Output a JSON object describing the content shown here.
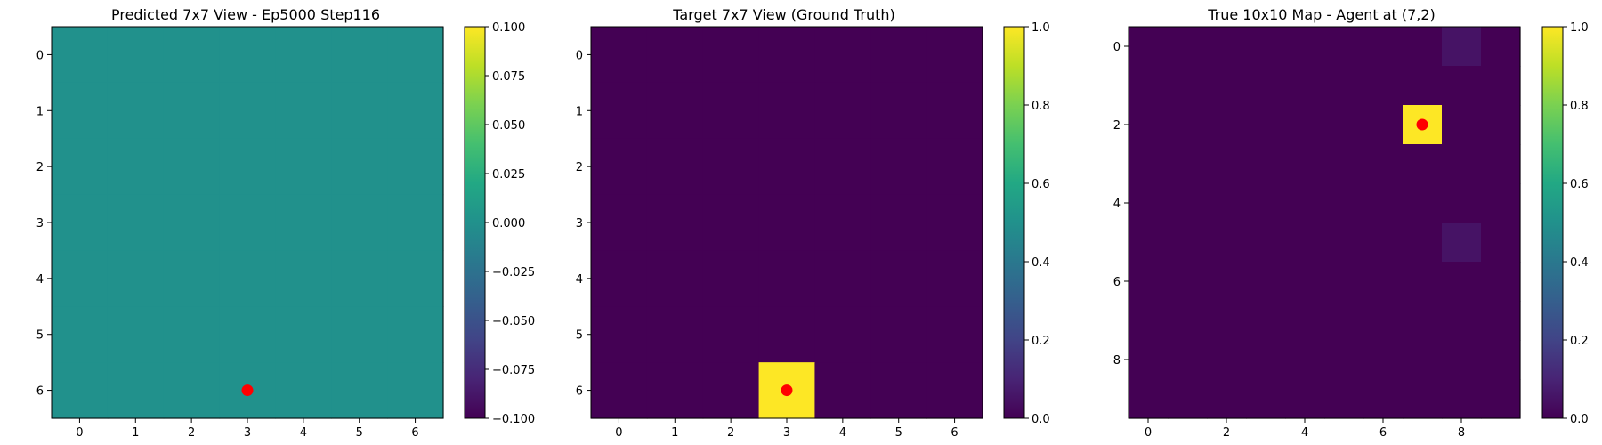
{
  "chart_data": [
    {
      "type": "heatmap",
      "title": "Predicted 7x7 View - Ep5000 Step116",
      "grid": false,
      "x_ticks": [
        "0",
        "1",
        "2",
        "3",
        "4",
        "5",
        "6"
      ],
      "y_ticks": [
        "0",
        "1",
        "2",
        "3",
        "4",
        "5",
        "6"
      ],
      "rows": 7,
      "cols": 7,
      "values": [
        [
          0,
          0,
          0,
          0,
          0,
          0,
          0
        ],
        [
          0,
          0,
          0,
          0,
          0,
          0,
          0
        ],
        [
          0,
          0,
          0,
          0,
          0,
          0,
          0
        ],
        [
          0,
          0,
          0,
          0,
          0,
          0,
          0
        ],
        [
          0,
          0,
          0,
          0,
          0,
          0,
          0
        ],
        [
          0,
          0,
          0,
          0,
          0,
          0,
          0
        ],
        [
          0,
          0,
          0,
          0,
          0,
          0,
          0
        ]
      ],
      "vmin": -0.1,
      "vmax": 0.1,
      "colormap": "viridis",
      "colorbar_ticks": [
        "0.100",
        "0.075",
        "0.050",
        "0.025",
        "0.000",
        "−0.025",
        "−0.050",
        "−0.075",
        "−0.100"
      ],
      "colorbar_tick_values": [
        0.1,
        0.075,
        0.05,
        0.025,
        0.0,
        -0.025,
        -0.05,
        -0.075,
        -0.1
      ],
      "marker": {
        "x": 3,
        "y": 6,
        "color": "#ff0000"
      }
    },
    {
      "type": "heatmap",
      "title": "Target 7x7 View (Ground Truth)",
      "grid": false,
      "x_ticks": [
        "0",
        "1",
        "2",
        "3",
        "4",
        "5",
        "6"
      ],
      "y_ticks": [
        "0",
        "1",
        "2",
        "3",
        "4",
        "5",
        "6"
      ],
      "rows": 7,
      "cols": 7,
      "values": [
        [
          0,
          0,
          0,
          0,
          0,
          0,
          0
        ],
        [
          0,
          0,
          0,
          0,
          0,
          0,
          0
        ],
        [
          0,
          0,
          0,
          0,
          0,
          0,
          0
        ],
        [
          0,
          0,
          0,
          0,
          0,
          0,
          0
        ],
        [
          0,
          0,
          0,
          0,
          0,
          0,
          0
        ],
        [
          0,
          0,
          0,
          0,
          0,
          0,
          0
        ],
        [
          0,
          0,
          0,
          1,
          0,
          0,
          0
        ]
      ],
      "vmin": 0,
      "vmax": 1,
      "colormap": "viridis",
      "colorbar_ticks": [
        "1.0",
        "0.8",
        "0.6",
        "0.4",
        "0.2",
        "0.0"
      ],
      "colorbar_tick_values": [
        1.0,
        0.8,
        0.6,
        0.4,
        0.2,
        0.0
      ],
      "marker": {
        "x": 3,
        "y": 6,
        "color": "#ff0000"
      }
    },
    {
      "type": "heatmap",
      "title": "True 10x10 Map - Agent at (7,2)",
      "grid": false,
      "x_ticks": [
        "0",
        "2",
        "4",
        "6",
        "8"
      ],
      "y_ticks": [
        "0",
        "2",
        "4",
        "6",
        "8"
      ],
      "rows": 10,
      "cols": 10,
      "values": [
        [
          0,
          0,
          0,
          0,
          0,
          0,
          0,
          0,
          0.05,
          0
        ],
        [
          0,
          0,
          0,
          0,
          0,
          0,
          0,
          0,
          0,
          0
        ],
        [
          0,
          0,
          0,
          0,
          0,
          0,
          0,
          1,
          0,
          0
        ],
        [
          0,
          0,
          0,
          0,
          0,
          0,
          0,
          0,
          0,
          0
        ],
        [
          0,
          0,
          0,
          0,
          0,
          0,
          0,
          0,
          0,
          0
        ],
        [
          0,
          0,
          0,
          0,
          0,
          0,
          0,
          0,
          0.05,
          0
        ],
        [
          0,
          0,
          0,
          0,
          0,
          0,
          0,
          0,
          0,
          0
        ],
        [
          0,
          0,
          0,
          0,
          0,
          0,
          0,
          0,
          0,
          0
        ],
        [
          0,
          0,
          0,
          0,
          0,
          0,
          0,
          0,
          0,
          0
        ],
        [
          0,
          0,
          0,
          0,
          0,
          0,
          0,
          0,
          0,
          0
        ]
      ],
      "vmin": 0,
      "vmax": 1,
      "colormap": "viridis",
      "colorbar_ticks": [
        "1.0",
        "0.8",
        "0.6",
        "0.4",
        "0.2",
        "0.0"
      ],
      "colorbar_tick_values": [
        1.0,
        0.8,
        0.6,
        0.4,
        0.2,
        0.0
      ],
      "marker": {
        "x": 7,
        "y": 2,
        "color": "#ff0000"
      }
    }
  ]
}
